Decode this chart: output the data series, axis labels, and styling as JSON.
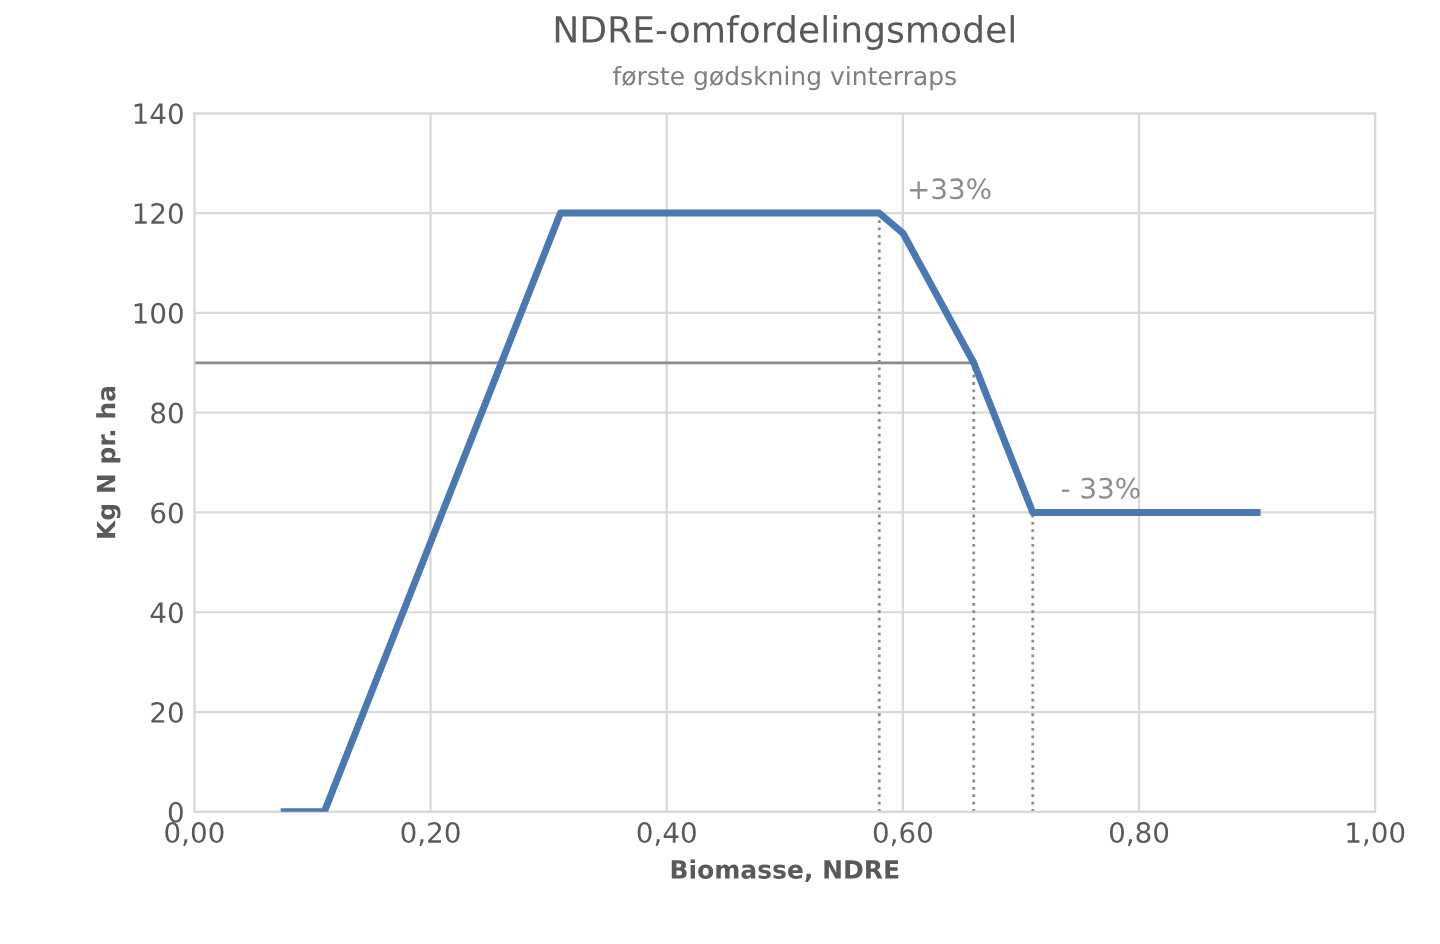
{
  "chart_data": {
    "type": "line",
    "title": "NDRE-omfordelingsmodel",
    "subtitle": "første gødskning vinterraps",
    "xlabel": "Biomasse, NDRE",
    "ylabel": "Kg N pr. ha",
    "series": [
      {
        "color": "#4a78b0",
        "x": [
          0.076,
          0.11,
          0.31,
          0.58,
          0.6,
          0.66,
          0.71,
          0.9
        ],
        "values": [
          0,
          0,
          120,
          120,
          116,
          90,
          60,
          60
        ]
      },
      {
        "color": "#8c8c8c",
        "line_style": "dotted",
        "x": [
          0.58,
          0.58
        ],
        "values": [
          0,
          120
        ]
      },
      {
        "color": "#8c8c8c",
        "line_style": "dotted",
        "x": [
          0.66,
          0.66
        ],
        "values": [
          0,
          90
        ]
      },
      {
        "color": "#8c8c8c",
        "line_style": "dotted",
        "x": [
          0.71,
          0.71
        ],
        "values": [
          0,
          60
        ]
      },
      {
        "color": "#8c8c8c",
        "line_style": "solid",
        "x": [
          0.0,
          0.66
        ],
        "values": [
          90,
          90
        ]
      }
    ],
    "annotations": [
      {
        "text": "+33%",
        "x": 0.58,
        "y": 120
      },
      {
        "text": "- 33%",
        "x": 0.71,
        "y": 60
      }
    ],
    "xlim": [
      0,
      1
    ],
    "xticks": [
      {
        "value": 0,
        "label": "0,00"
      },
      {
        "value": 0.2,
        "label": "0,20"
      },
      {
        "value": 0.4,
        "label": "0,40"
      },
      {
        "value": 0.6,
        "label": "0,60"
      },
      {
        "value": 0.8,
        "label": "0,80"
      },
      {
        "value": 1,
        "label": "1,00"
      }
    ],
    "ylim": [
      0,
      140
    ],
    "yticks": [
      0,
      20,
      40,
      60,
      80,
      100,
      120,
      140
    ],
    "grid": true,
    "marker": "none"
  }
}
